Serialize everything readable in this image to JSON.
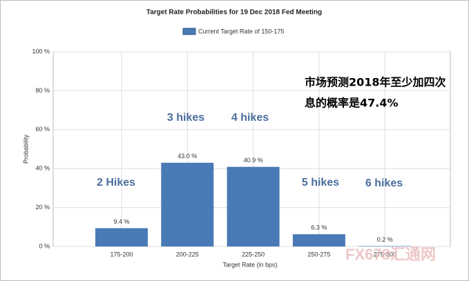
{
  "chart_data": {
    "type": "bar",
    "title": "Target Rate Probabilities for 19 Dec 2018 Fed Meeting",
    "x_label": "Target Rate (in bps)",
    "y_label": "Probability",
    "categories": [
      "175-200",
      "200-225",
      "225-250",
      "250-275",
      "275-300"
    ],
    "series": [
      {
        "name": "Current Target Rate of 150-175",
        "color": "#4a7ab5",
        "values": [
          9.4,
          43.0,
          40.9,
          6.3,
          0.2
        ],
        "value_labels": [
          "9.4 %",
          "43.0 %",
          "40.9 %",
          "6.3 %",
          "0.2 %"
        ]
      }
    ],
    "ylim": [
      0,
      100
    ],
    "yticks": [
      {
        "value": 0,
        "label": "0 %"
      },
      {
        "value": 20,
        "label": "20 %"
      },
      {
        "value": 40,
        "label": "40 %"
      },
      {
        "value": 60,
        "label": "60 %"
      },
      {
        "value": 80,
        "label": "80 %"
      },
      {
        "value": 100,
        "label": "100 %"
      }
    ],
    "grid": true,
    "annotations": [
      "2 Hikes",
      "3 hikes",
      "4 hikes",
      "5 hikes",
      "6 hikes",
      "市场预测2018年至少加四次",
      "息的概率是47.4%"
    ],
    "watermark": "FX678汇通网"
  }
}
